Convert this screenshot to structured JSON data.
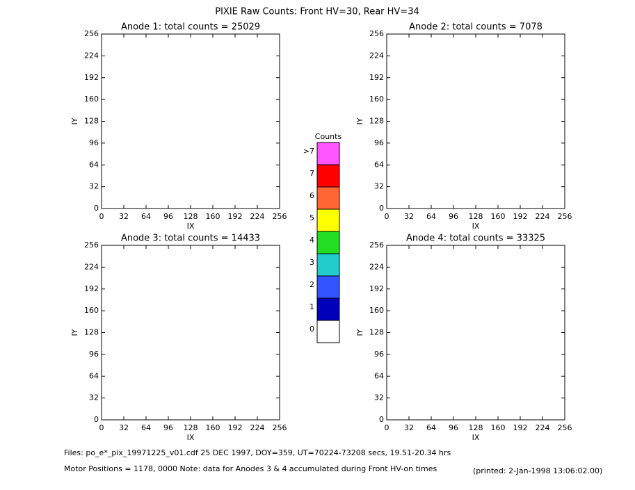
{
  "page": {
    "title": "PIXIE Raw Counts:  Front HV=30, Rear HV=34",
    "footer": [
      "Files: po_e*_pix_19971225_v01.cdf    25 DEC 1997, DOY=359, UT=70224-73208 secs, 19.51-20.34 hrs",
      "Motor Positions = 1178, 0000   Note: data for Anodes 3 & 4 accumulated during Front HV-on times"
    ],
    "printed": "(printed:  2-Jan-1998 13:06:02.00)"
  },
  "colorbar": {
    "title": "Counts",
    "levels": [
      {
        "label": ">7",
        "color": "#ff55ff"
      },
      {
        "label": "7",
        "color": "#ff0000"
      },
      {
        "label": "6",
        "color": "#ff6633"
      },
      {
        "label": "5",
        "color": "#ffff00"
      },
      {
        "label": "4",
        "color": "#22dd22"
      },
      {
        "label": "3",
        "color": "#22cccc"
      },
      {
        "label": "2",
        "color": "#3355ff"
      },
      {
        "label": "1",
        "color": "#0000bb"
      },
      {
        "label": "0",
        "color": "#ffffff"
      }
    ]
  },
  "chart_data": [
    {
      "type": "heatmap",
      "title": "Anode 1: total counts = 25029",
      "xlabel": "IX",
      "ylabel": "IY",
      "xlim": [
        0,
        256
      ],
      "ylim": [
        0,
        256
      ],
      "xticks": [
        0,
        32,
        64,
        96,
        128,
        160,
        192,
        224,
        256
      ],
      "yticks": [
        0,
        32,
        64,
        96,
        128,
        160,
        192,
        224,
        256
      ]
    },
    {
      "type": "heatmap",
      "title": "Anode 2: total counts = 7078",
      "xlabel": "IX",
      "ylabel": "IY",
      "xlim": [
        0,
        256
      ],
      "ylim": [
        0,
        256
      ],
      "xticks": [
        0,
        32,
        64,
        96,
        128,
        160,
        192,
        224,
        256
      ],
      "yticks": [
        0,
        32,
        64,
        96,
        128,
        160,
        192,
        224,
        256
      ]
    },
    {
      "type": "heatmap",
      "title": "Anode 3: total counts = 14433",
      "xlabel": "IX",
      "ylabel": "IY",
      "xlim": [
        0,
        256
      ],
      "ylim": [
        0,
        256
      ],
      "xticks": [
        0,
        32,
        64,
        96,
        128,
        160,
        192,
        224,
        256
      ],
      "yticks": [
        0,
        32,
        64,
        96,
        128,
        160,
        192,
        224,
        256
      ]
    },
    {
      "type": "heatmap",
      "title": "Anode 4: total counts = 33325",
      "xlabel": "IX",
      "ylabel": "IY",
      "xlim": [
        0,
        256
      ],
      "ylim": [
        0,
        256
      ],
      "xticks": [
        0,
        32,
        64,
        96,
        128,
        160,
        192,
        224,
        256
      ],
      "yticks": [
        0,
        32,
        64,
        96,
        128,
        160,
        192,
        224,
        256
      ]
    }
  ]
}
